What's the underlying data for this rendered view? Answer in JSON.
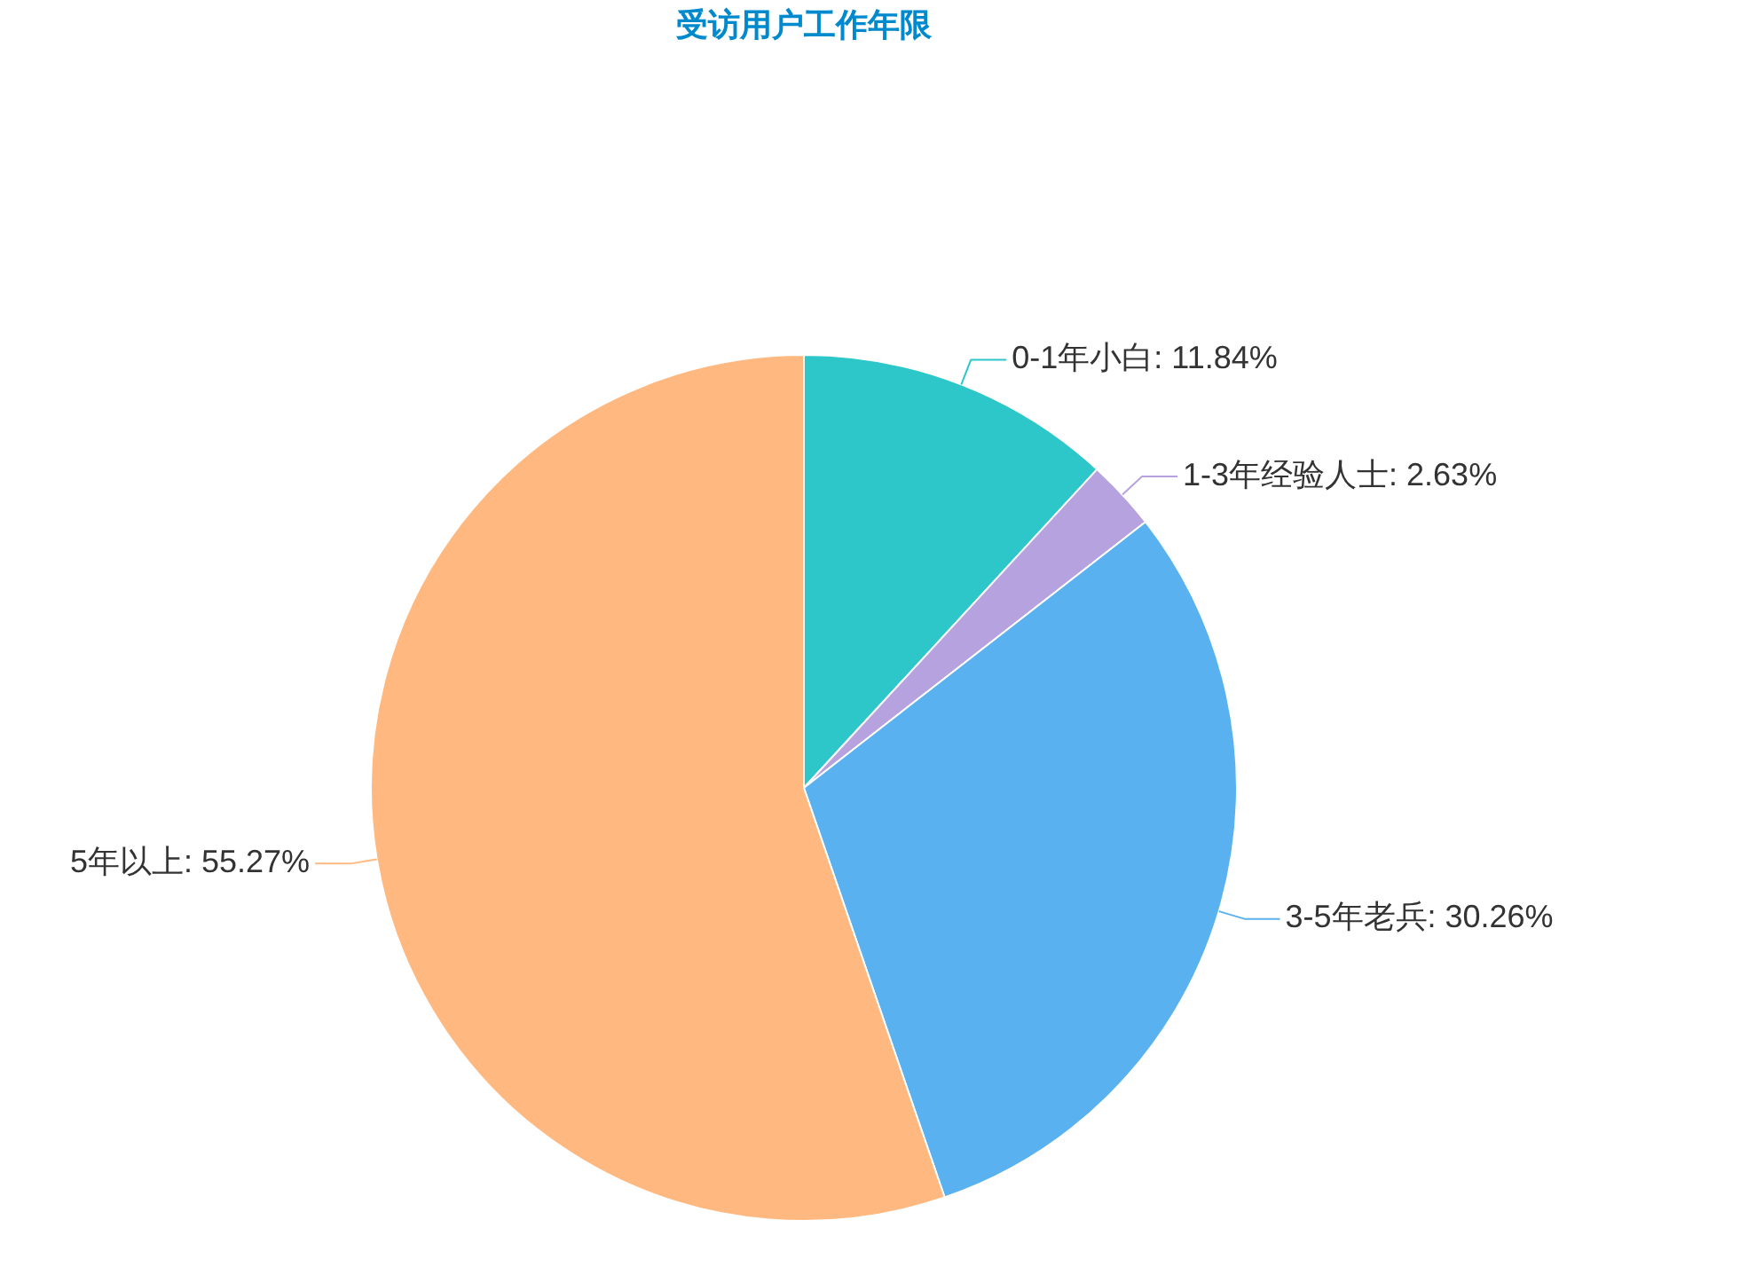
{
  "chart_data": {
    "type": "pie",
    "title": "受访用户工作年限",
    "categories": [
      "0-1年小白",
      "1-3年经验人士",
      "3-5年老兵",
      "5年以上"
    ],
    "values": [
      11.84,
      2.63,
      30.26,
      55.27
    ],
    "colors": [
      "#2ec7c9",
      "#b6a2de",
      "#5ab1ef",
      "#ffb980"
    ],
    "value_labels": [
      "11.84%",
      "2.63%",
      "30.26%",
      "55.27%"
    ]
  }
}
